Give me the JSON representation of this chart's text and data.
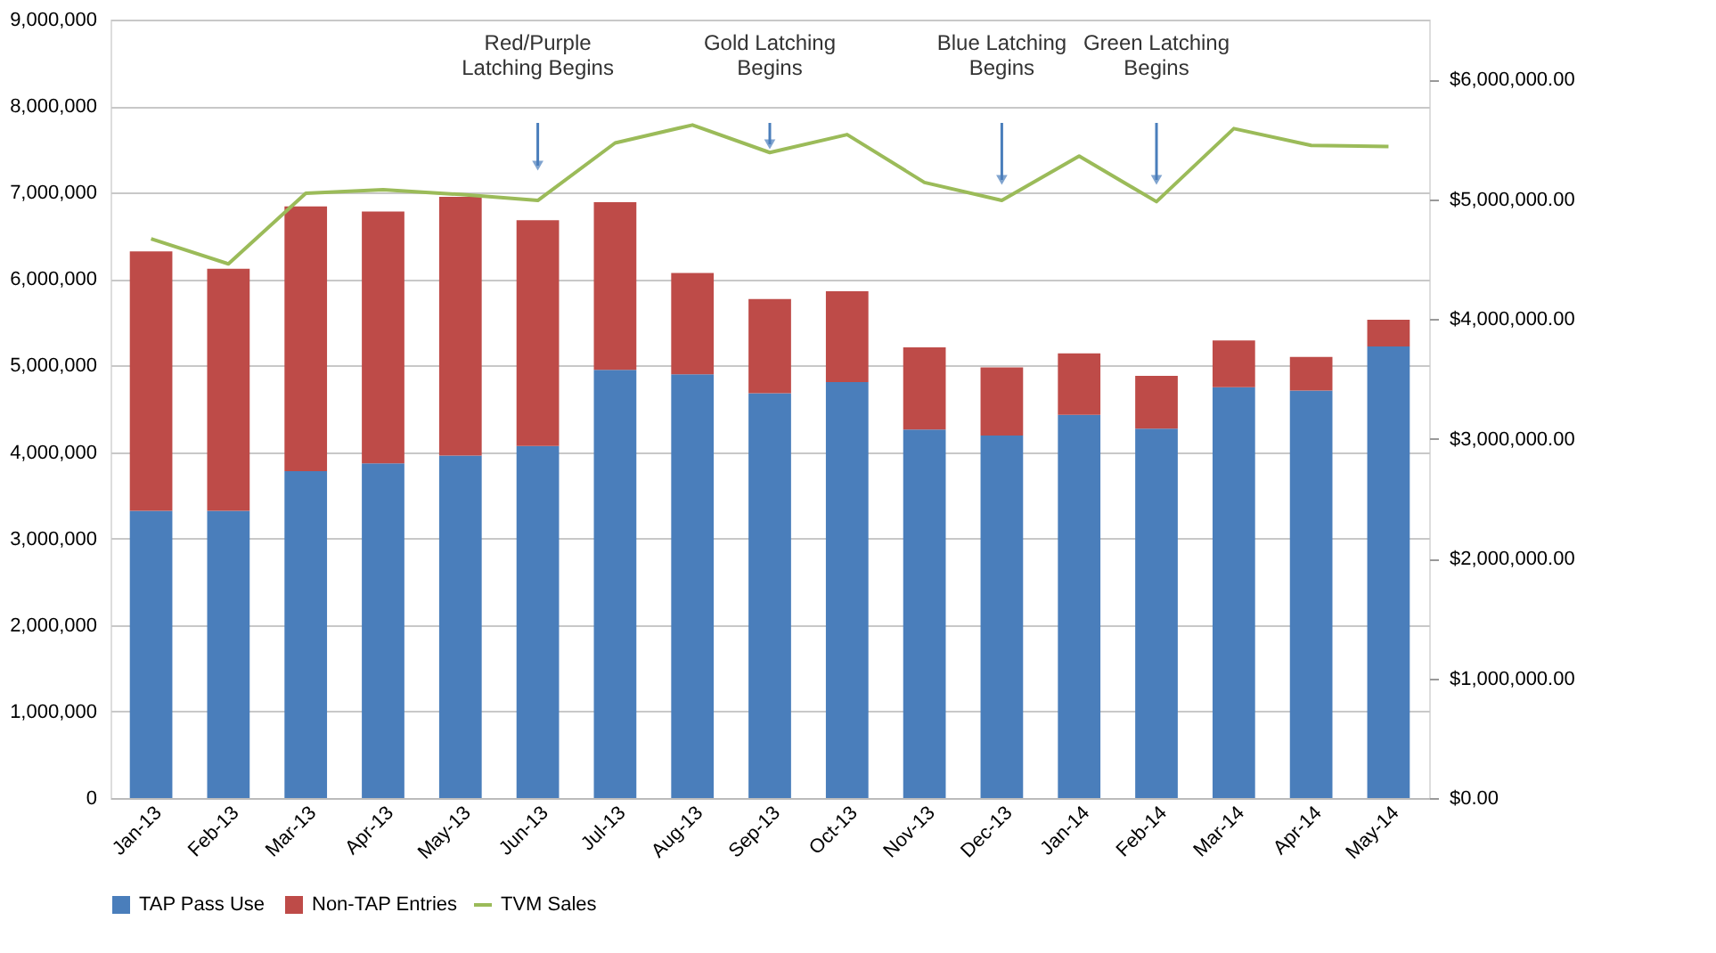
{
  "chart_data": {
    "type": "bar",
    "stacked": true,
    "categories": [
      "Jan-13",
      "Feb-13",
      "Mar-13",
      "Apr-13",
      "May-13",
      "Jun-13",
      "Jul-13",
      "Aug-13",
      "Sep-13",
      "Oct-13",
      "Nov-13",
      "Dec-13",
      "Jan-14",
      "Feb-14",
      "Mar-14",
      "Apr-14",
      "May-14"
    ],
    "series": [
      {
        "name": "TAP Pass Use",
        "color": "#4a7ebb",
        "values": [
          3320000,
          3320000,
          3780000,
          3870000,
          3960000,
          4070000,
          4950000,
          4900000,
          4680000,
          4810000,
          4260000,
          4190000,
          4430000,
          4270000,
          4750000,
          4710000,
          5220000
        ]
      },
      {
        "name": "Non-TAP Entries",
        "color": "#be4b48",
        "values": [
          3000000,
          2800000,
          3060000,
          2910000,
          2990000,
          2610000,
          1940000,
          1170000,
          1090000,
          1050000,
          950000,
          790000,
          710000,
          610000,
          540000,
          390000,
          310000
        ]
      },
      {
        "name": "TVM Sales",
        "color": "#9bbb59",
        "type": "line",
        "axis": "y2",
        "values": [
          4670000,
          4460000,
          5050000,
          5080000,
          5040000,
          4990000,
          5470000,
          5620000,
          5390000,
          5540000,
          5140000,
          4990000,
          5360000,
          4980000,
          5590000,
          5450000,
          5440000
        ]
      }
    ],
    "ylim": [
      0,
      9000000
    ],
    "yticks": [
      0,
      {
        "value": 1000000,
        "label": "1,000,000"
      },
      {
        "value": 2000000,
        "label": "2,000,000"
      },
      {
        "value": 3000000,
        "label": "3,000,000"
      },
      {
        "value": 4000000,
        "label": "4,000,000"
      },
      {
        "value": 5000000,
        "label": "5,000,000"
      },
      {
        "value": 6000000,
        "label": "6,000,000"
      },
      {
        "value": 7000000,
        "label": "7,000,000"
      },
      {
        "value": 8000000,
        "label": "8,000,000"
      },
      {
        "value": 9000000,
        "label": "9,000,000"
      }
    ],
    "y2lim": [
      0,
      6500000
    ],
    "y2ticks": [
      {
        "value": 0,
        "label": "$0.00"
      },
      {
        "value": 1000000,
        "label": "$1,000,000.00"
      },
      {
        "value": 2000000,
        "label": "$2,000,000.00"
      },
      {
        "value": 3000000,
        "label": "$3,000,000.00"
      },
      {
        "value": 4000000,
        "label": "$4,000,000.00"
      },
      {
        "value": 5000000,
        "label": "$5,000,000.00"
      },
      {
        "value": 6000000,
        "label": "$6,000,000.00"
      }
    ],
    "grid": "y",
    "legend": "bottom",
    "marker": "none",
    "line_style": "solid",
    "annotations": [
      "Red/Purple\nLatching Begins",
      "Gold Latching\nBegins",
      "Blue Latching\nBegins",
      "Green Latching\nBegins"
    ]
  }
}
